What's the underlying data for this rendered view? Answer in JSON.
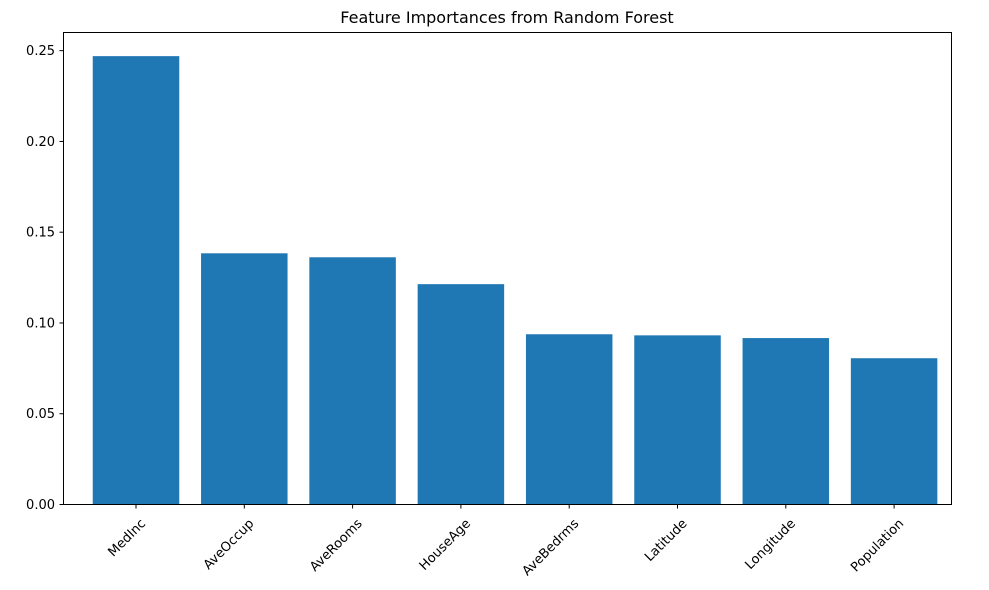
{
  "chart_data": {
    "type": "bar",
    "title": "Feature Importances from Random Forest",
    "xlabel": "",
    "ylabel": "",
    "categories": [
      "MedInc",
      "AveOccup",
      "AveRooms",
      "HouseAge",
      "AveBedrms",
      "Latitude",
      "Longitude",
      "Population"
    ],
    "values": [
      0.2467,
      0.1381,
      0.1359,
      0.1211,
      0.0935,
      0.0929,
      0.0914,
      0.0803
    ],
    "ylim": [
      0,
      0.26
    ],
    "yticks": [
      0.0,
      0.05,
      0.1,
      0.15,
      0.2,
      0.25
    ],
    "ytick_labels": [
      "0.00",
      "0.05",
      "0.10",
      "0.15",
      "0.20",
      "0.25"
    ],
    "xtick_rotation": 45,
    "grid": false,
    "legend": "none",
    "bar_color": "#1f77b4"
  }
}
